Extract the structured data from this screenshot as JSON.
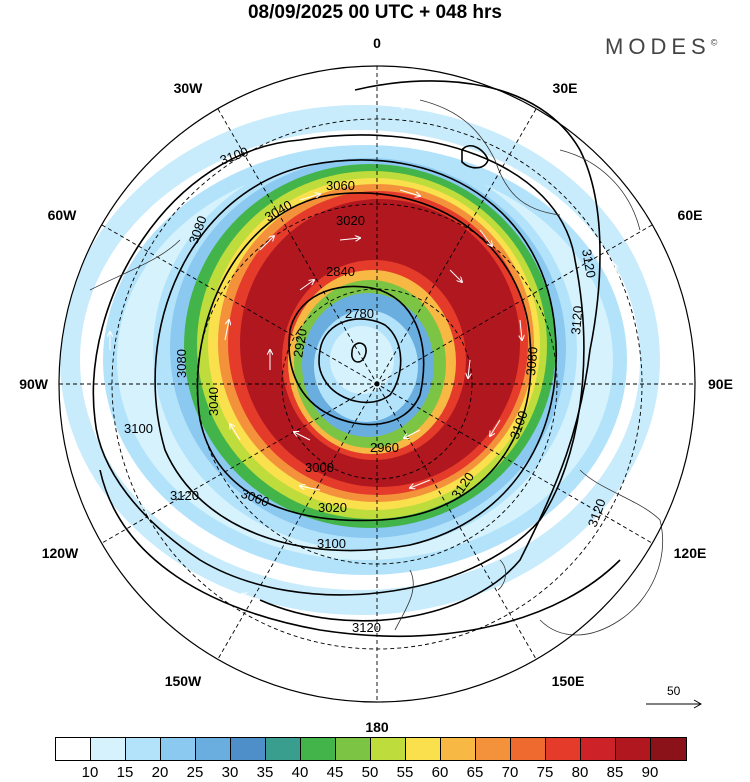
{
  "header": {
    "title": "08/09/2025  00 UTC  + 048 hrs",
    "brand": "MODES",
    "brand_mark": "©"
  },
  "map": {
    "longitude_labels": [
      "0",
      "30E",
      "60E",
      "90E",
      "120E",
      "150E",
      "180",
      "150W",
      "120W",
      "90W",
      "60W",
      "30W"
    ],
    "contour_labels": [
      "3100",
      "3080",
      "3060",
      "3040",
      "3020",
      "2780",
      "2840",
      "2920",
      "3080",
      "3100",
      "3120",
      "3120",
      "3120",
      "3120",
      "3120",
      "3100",
      "3080",
      "3040",
      "3100",
      "3120",
      "3060",
      "3020",
      "3000",
      "2960"
    ]
  },
  "reference_vector": {
    "label": "50"
  },
  "colorbar": {
    "colors": [
      "#ffffff",
      "#d6f3fd",
      "#b3e3fb",
      "#8cc9f0",
      "#6aaee0",
      "#4f8fc9",
      "#3a9e8e",
      "#43b44a",
      "#7cc443",
      "#bedc3c",
      "#f9e04c",
      "#f8b944",
      "#f4923b",
      "#ee6a2e",
      "#e53b2b",
      "#cc2228",
      "#b0171f",
      "#8b1219"
    ],
    "ticks": [
      "10",
      "15",
      "20",
      "25",
      "30",
      "35",
      "40",
      "45",
      "50",
      "55",
      "60",
      "65",
      "70",
      "75",
      "80",
      "85",
      "90"
    ]
  }
}
